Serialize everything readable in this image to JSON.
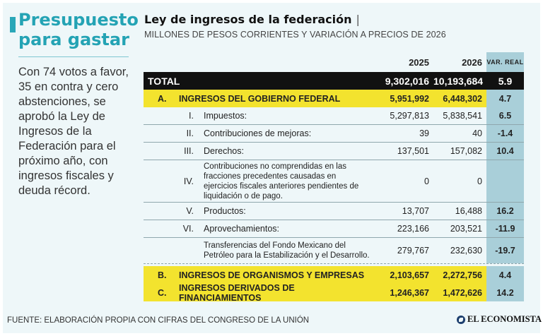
{
  "sidebar": {
    "title": "Presupuesto para gastar",
    "text": "Con 74 votos a favor, 35 en contra y cero abstenciones, se aprobó la Ley de Ingresos de la Federación para el próximo año, con ingresos fiscales y deuda récord."
  },
  "header": {
    "title": "Ley de ingresos de la federación",
    "pipe": "|",
    "subtitle": "MILLONES DE PESOS CORRIENTES Y VARIACIÓN A PRECIOS DE 2026"
  },
  "table": {
    "columns": {
      "y2025": "2025",
      "y2026": "2026",
      "var": "VAR. REAL"
    },
    "total": {
      "label": "TOTAL",
      "y2025": "9,302,016",
      "y2026": "10,193,684",
      "var": "5.9"
    },
    "sections": [
      {
        "num": "A.",
        "label": "INGRESOS DEL GOBIERNO FEDERAL",
        "y2025": "5,951,992",
        "y2026": "6,448,302",
        "var": "4.7"
      },
      {
        "num": "B.",
        "label": "INGRESOS DE ORGANISMOS Y EMPRESAS",
        "y2025": "2,103,657",
        "y2026": "2,272,756",
        "var": "4.4"
      },
      {
        "num": "C.",
        "label": "INGRESOS DERIVADOS DE FINANCIAMIENTOS",
        "y2025": "1,246,367",
        "y2026": "1,472,626",
        "var": "14.2"
      }
    ],
    "items": [
      {
        "num": "I.",
        "label": "Impuestos:",
        "y2025": "5,297,813",
        "y2026": "5,838,541",
        "var": "6.5"
      },
      {
        "num": "II.",
        "label": "Contribuciones de mejoras:",
        "y2025": "39",
        "y2026": "40",
        "var": "-1.4"
      },
      {
        "num": "III.",
        "label": "Derechos:",
        "y2025": "137,501",
        "y2026": "157,082",
        "var": "10.4"
      },
      {
        "num": "IV.",
        "label": "Contribuciones no comprendidas en las fracciones precedentes causadas en ejercicios fiscales anteriores pendientes de liquidación o de pago.",
        "y2025": "0",
        "y2026": "0",
        "var": ""
      },
      {
        "num": "V.",
        "label": "Productos:",
        "y2025": "13,707",
        "y2026": "16,488",
        "var": "16.2"
      },
      {
        "num": "VI.",
        "label": "Aprovechamientos:",
        "y2025": "223,166",
        "y2026": "203,521",
        "var": "-11.9"
      },
      {
        "num": "",
        "label": "Transferencias del Fondo Mexicano del Petróleo para la Estabilización y el Desarrollo.",
        "y2025": "279,767",
        "y2026": "232,630",
        "var": "-19.7"
      }
    ]
  },
  "footer": {
    "source": "FUENTE: ELABORACIÓN PROPIA CON CIFRAS DEL CONGRESO DE LA UNIÓN",
    "logo": "EL ECONOMISTA"
  }
}
